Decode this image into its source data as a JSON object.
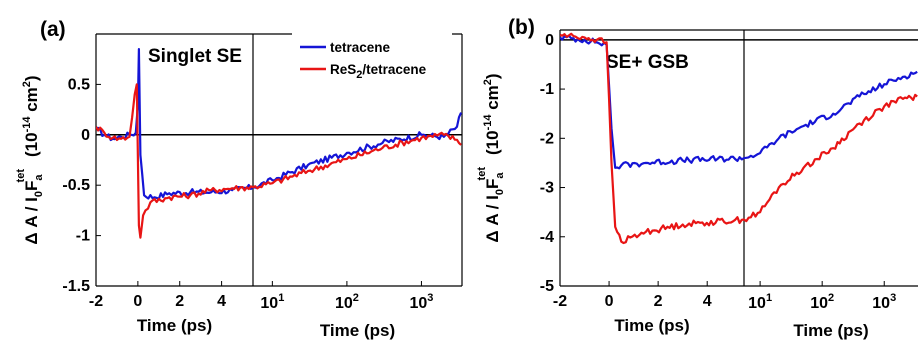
{
  "chart_data": [
    {
      "type": "line",
      "panel_label": "(a)",
      "annotation": "Singlet SE",
      "ylabel": {
        "main": "Δ A / I",
        "sub": "0",
        "main2": "F",
        "sub2": "a",
        "sup2": "tet",
        "units": "(10",
        "units_exp": "-14",
        "units_tail": " cm",
        "units_exp2": "2",
        "units_close": ")"
      },
      "ylim": [
        -1.5,
        1.0
      ],
      "yticks": [
        "-1.5",
        "-1",
        "-0.5",
        "0",
        "0.5"
      ],
      "ytick_values": [
        -1.5,
        -1,
        -0.5,
        0,
        0.5
      ],
      "x_linear": {
        "label": "Time (ps)",
        "range": [
          -2,
          5.5
        ],
        "ticks": [
          "-2",
          "0",
          "2",
          "4"
        ],
        "tick_values": [
          -2,
          0,
          2,
          4
        ]
      },
      "x_log": {
        "label": "Time (ps)",
        "range": [
          5.5,
          3500
        ],
        "ticks": [
          {
            "base": "10",
            "exp": "1",
            "value": 10
          },
          {
            "base": "10",
            "exp": "2",
            "value": 100
          },
          {
            "base": "10",
            "exp": "3",
            "value": 1000
          }
        ]
      },
      "legend": {
        "placement": "top-right",
        "entries": [
          {
            "label": "tetracene",
            "color": "#1515d6"
          },
          {
            "label_main": "ReS",
            "label_sub": "2",
            "label_tail": "/tetracene",
            "color": "#e81515"
          }
        ]
      },
      "series": [
        {
          "name": "tetracene",
          "color": "#1515d6",
          "points": [
            [
              -2,
              0.06
            ],
            [
              -1.6,
              0.0
            ],
            [
              -1.2,
              -0.04
            ],
            [
              -0.8,
              -0.02
            ],
            [
              -0.4,
              0.0
            ],
            [
              -0.1,
              0.02
            ],
            [
              0.0,
              0.3
            ],
            [
              0.05,
              0.85
            ],
            [
              0.12,
              -0.2
            ],
            [
              0.3,
              -0.6
            ],
            [
              0.8,
              -0.62
            ],
            [
              1.5,
              -0.58
            ],
            [
              2.5,
              -0.57
            ],
            [
              3.5,
              -0.57
            ],
            [
              4.5,
              -0.55
            ],
            [
              5.5,
              -0.52
            ],
            [
              10,
              -0.45
            ],
            [
              30,
              -0.3
            ],
            [
              100,
              -0.18
            ],
            [
              300,
              -0.08
            ],
            [
              1000,
              0.0
            ],
            [
              2000,
              -0.02
            ],
            [
              3000,
              0.08
            ],
            [
              3400,
              0.22
            ]
          ]
        },
        {
          "name_main": "ReS",
          "name_sub": "2",
          "name_tail": "/tetracene",
          "color": "#e81515",
          "points": [
            [
              -2,
              0.08
            ],
            [
              -1.6,
              0.02
            ],
            [
              -1.2,
              -0.03
            ],
            [
              -0.8,
              -0.04
            ],
            [
              -0.4,
              -0.02
            ],
            [
              -0.15,
              0.4
            ],
            [
              -0.05,
              0.5
            ],
            [
              0.05,
              -0.9
            ],
            [
              0.12,
              -1.02
            ],
            [
              0.25,
              -0.8
            ],
            [
              0.6,
              -0.67
            ],
            [
              1.5,
              -0.62
            ],
            [
              2.5,
              -0.6
            ],
            [
              3.5,
              -0.55
            ],
            [
              4.5,
              -0.53
            ],
            [
              5.5,
              -0.52
            ],
            [
              10,
              -0.48
            ],
            [
              30,
              -0.36
            ],
            [
              100,
              -0.24
            ],
            [
              300,
              -0.13
            ],
            [
              1000,
              -0.03
            ],
            [
              2000,
              0.0
            ],
            [
              3000,
              -0.05
            ],
            [
              3400,
              -0.1
            ]
          ]
        }
      ]
    },
    {
      "type": "line",
      "panel_label": "(b)",
      "annotation": "SE+ GSB",
      "ylabel": {
        "main": "Δ A / I",
        "sub": "0",
        "main2": "F",
        "sub2": "a",
        "sup2": "tet",
        "units": "(10",
        "units_exp": "-14",
        "units_tail": " cm",
        "units_exp2": "2",
        "units_close": ")"
      },
      "ylim": [
        -5,
        0.2
      ],
      "yticks": [
        "-5",
        "-4",
        "-3",
        "-2",
        "-1",
        "0"
      ],
      "ytick_values": [
        -5,
        -4,
        -3,
        -2,
        -1,
        0
      ],
      "x_linear": {
        "label": "Time (ps)",
        "range": [
          -2,
          5.5
        ],
        "ticks": [
          "-2",
          "0",
          "2",
          "4"
        ],
        "tick_values": [
          -2,
          0,
          2,
          4
        ]
      },
      "x_log": {
        "label": "Time (ps)",
        "range": [
          5.5,
          3500
        ],
        "ticks": [
          {
            "base": "10",
            "exp": "1",
            "value": 10
          },
          {
            "base": "10",
            "exp": "2",
            "value": 100
          },
          {
            "base": "10",
            "exp": "3",
            "value": 1000
          }
        ]
      },
      "series": [
        {
          "name": "tetracene",
          "color": "#1515d6",
          "points": [
            [
              -2,
              0.05
            ],
            [
              -1,
              0.0
            ],
            [
              -0.5,
              -0.05
            ],
            [
              -0.1,
              -0.1
            ],
            [
              0.1,
              -1.8
            ],
            [
              0.25,
              -2.6
            ],
            [
              0.5,
              -2.55
            ],
            [
              1.5,
              -2.5
            ],
            [
              3,
              -2.45
            ],
            [
              5.5,
              -2.4
            ],
            [
              10,
              -2.3
            ],
            [
              20,
              -2.0
            ],
            [
              50,
              -1.75
            ],
            [
              150,
              -1.5
            ],
            [
              400,
              -1.15
            ],
            [
              1000,
              -0.9
            ],
            [
              2000,
              -0.75
            ],
            [
              3400,
              -0.65
            ]
          ]
        },
        {
          "name_main": "ReS",
          "name_sub": "2",
          "name_tail": "/tetracene",
          "color": "#e81515",
          "points": [
            [
              -2,
              0.1
            ],
            [
              -1,
              0.05
            ],
            [
              -0.5,
              0.0
            ],
            [
              -0.1,
              -0.05
            ],
            [
              0.1,
              -2.5
            ],
            [
              0.25,
              -3.8
            ],
            [
              0.5,
              -4.1
            ],
            [
              1.5,
              -3.9
            ],
            [
              3,
              -3.75
            ],
            [
              5.5,
              -3.65
            ],
            [
              10,
              -3.5
            ],
            [
              20,
              -3.0
            ],
            [
              50,
              -2.6
            ],
            [
              150,
              -2.2
            ],
            [
              400,
              -1.7
            ],
            [
              1000,
              -1.35
            ],
            [
              2000,
              -1.2
            ],
            [
              3400,
              -1.15
            ]
          ]
        }
      ]
    }
  ]
}
